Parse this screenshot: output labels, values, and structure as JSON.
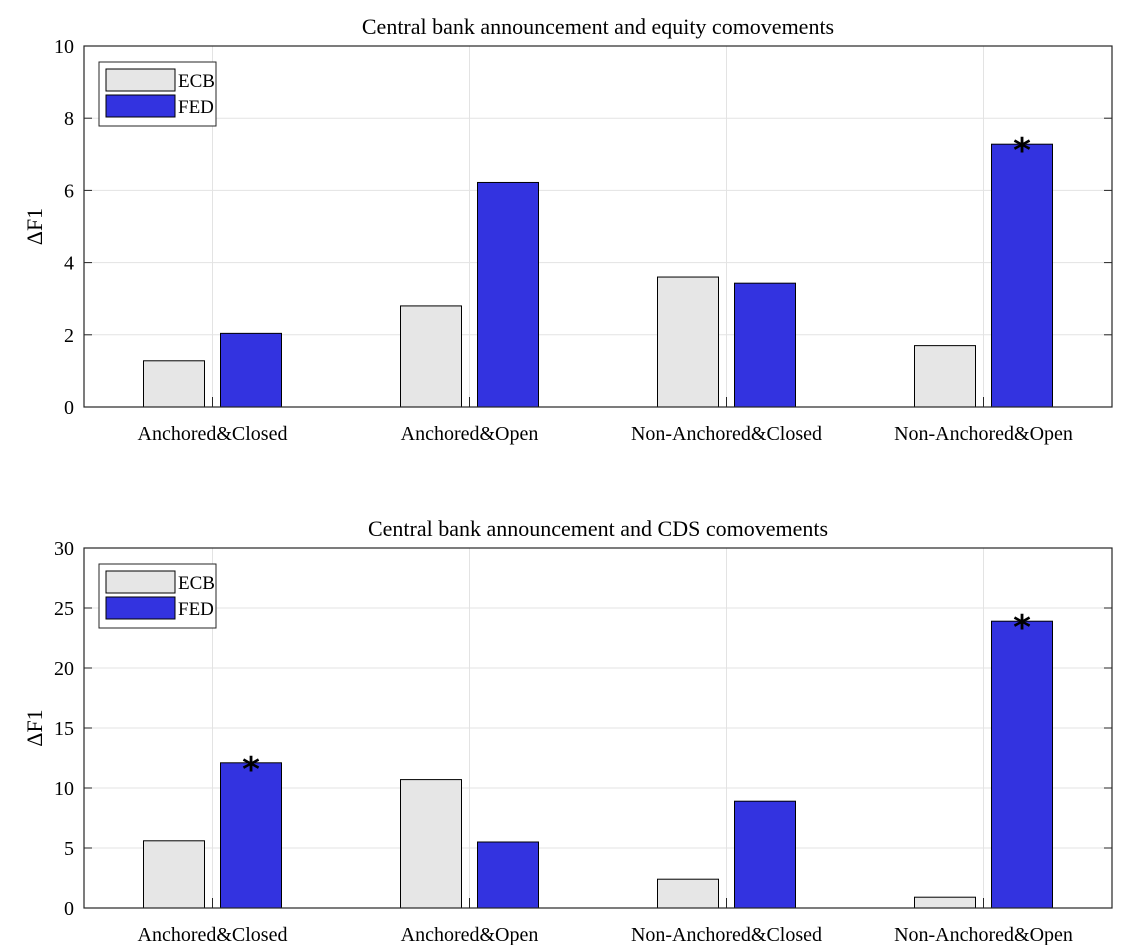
{
  "chart_data": [
    {
      "type": "bar",
      "title": "Central bank announcement and equity comovements",
      "ylabel": "ΔF1",
      "xlabel": "",
      "ylim": [
        0,
        10
      ],
      "yticks": [
        0,
        2,
        4,
        6,
        8,
        10
      ],
      "categories": [
        "Anchored&Closed",
        "Anchored&Open",
        "Non-Anchored&Closed",
        "Non-Anchored&Open"
      ],
      "series": [
        {
          "name": "ECB",
          "color": "#e6e6e6",
          "values": [
            1.28,
            2.8,
            3.6,
            1.7
          ]
        },
        {
          "name": "FED",
          "color": "#3333e0",
          "values": [
            2.04,
            6.22,
            3.43,
            7.28
          ]
        }
      ],
      "annotations": [
        {
          "series": "FED",
          "category": "Non-Anchored&Open",
          "text": "*"
        }
      ],
      "legend": "top-left",
      "grid": true
    },
    {
      "type": "bar",
      "title": "Central bank announcement and CDS comovements",
      "ylabel": "ΔF1",
      "xlabel": "",
      "ylim": [
        0,
        30
      ],
      "yticks": [
        0,
        5,
        10,
        15,
        20,
        25,
        30
      ],
      "categories": [
        "Anchored&Closed",
        "Anchored&Open",
        "Non-Anchored&Closed",
        "Non-Anchored&Open"
      ],
      "series": [
        {
          "name": "ECB",
          "color": "#e6e6e6",
          "values": [
            5.6,
            10.7,
            2.4,
            0.9
          ]
        },
        {
          "name": "FED",
          "color": "#3333e0",
          "values": [
            12.1,
            5.5,
            8.9,
            23.9
          ]
        }
      ],
      "annotations": [
        {
          "series": "FED",
          "category": "Anchored&Closed",
          "text": "*"
        },
        {
          "series": "FED",
          "category": "Non-Anchored&Open",
          "text": "*"
        }
      ],
      "legend": "top-left",
      "grid": true
    }
  ]
}
